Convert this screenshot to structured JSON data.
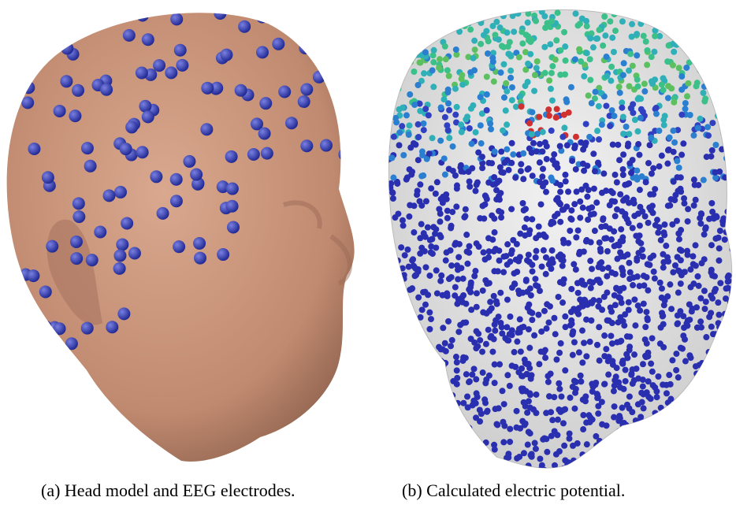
{
  "figure": {
    "captions": [
      "(a) Head model and EEG electrodes.",
      "(b) Calculated electric potential."
    ]
  }
}
